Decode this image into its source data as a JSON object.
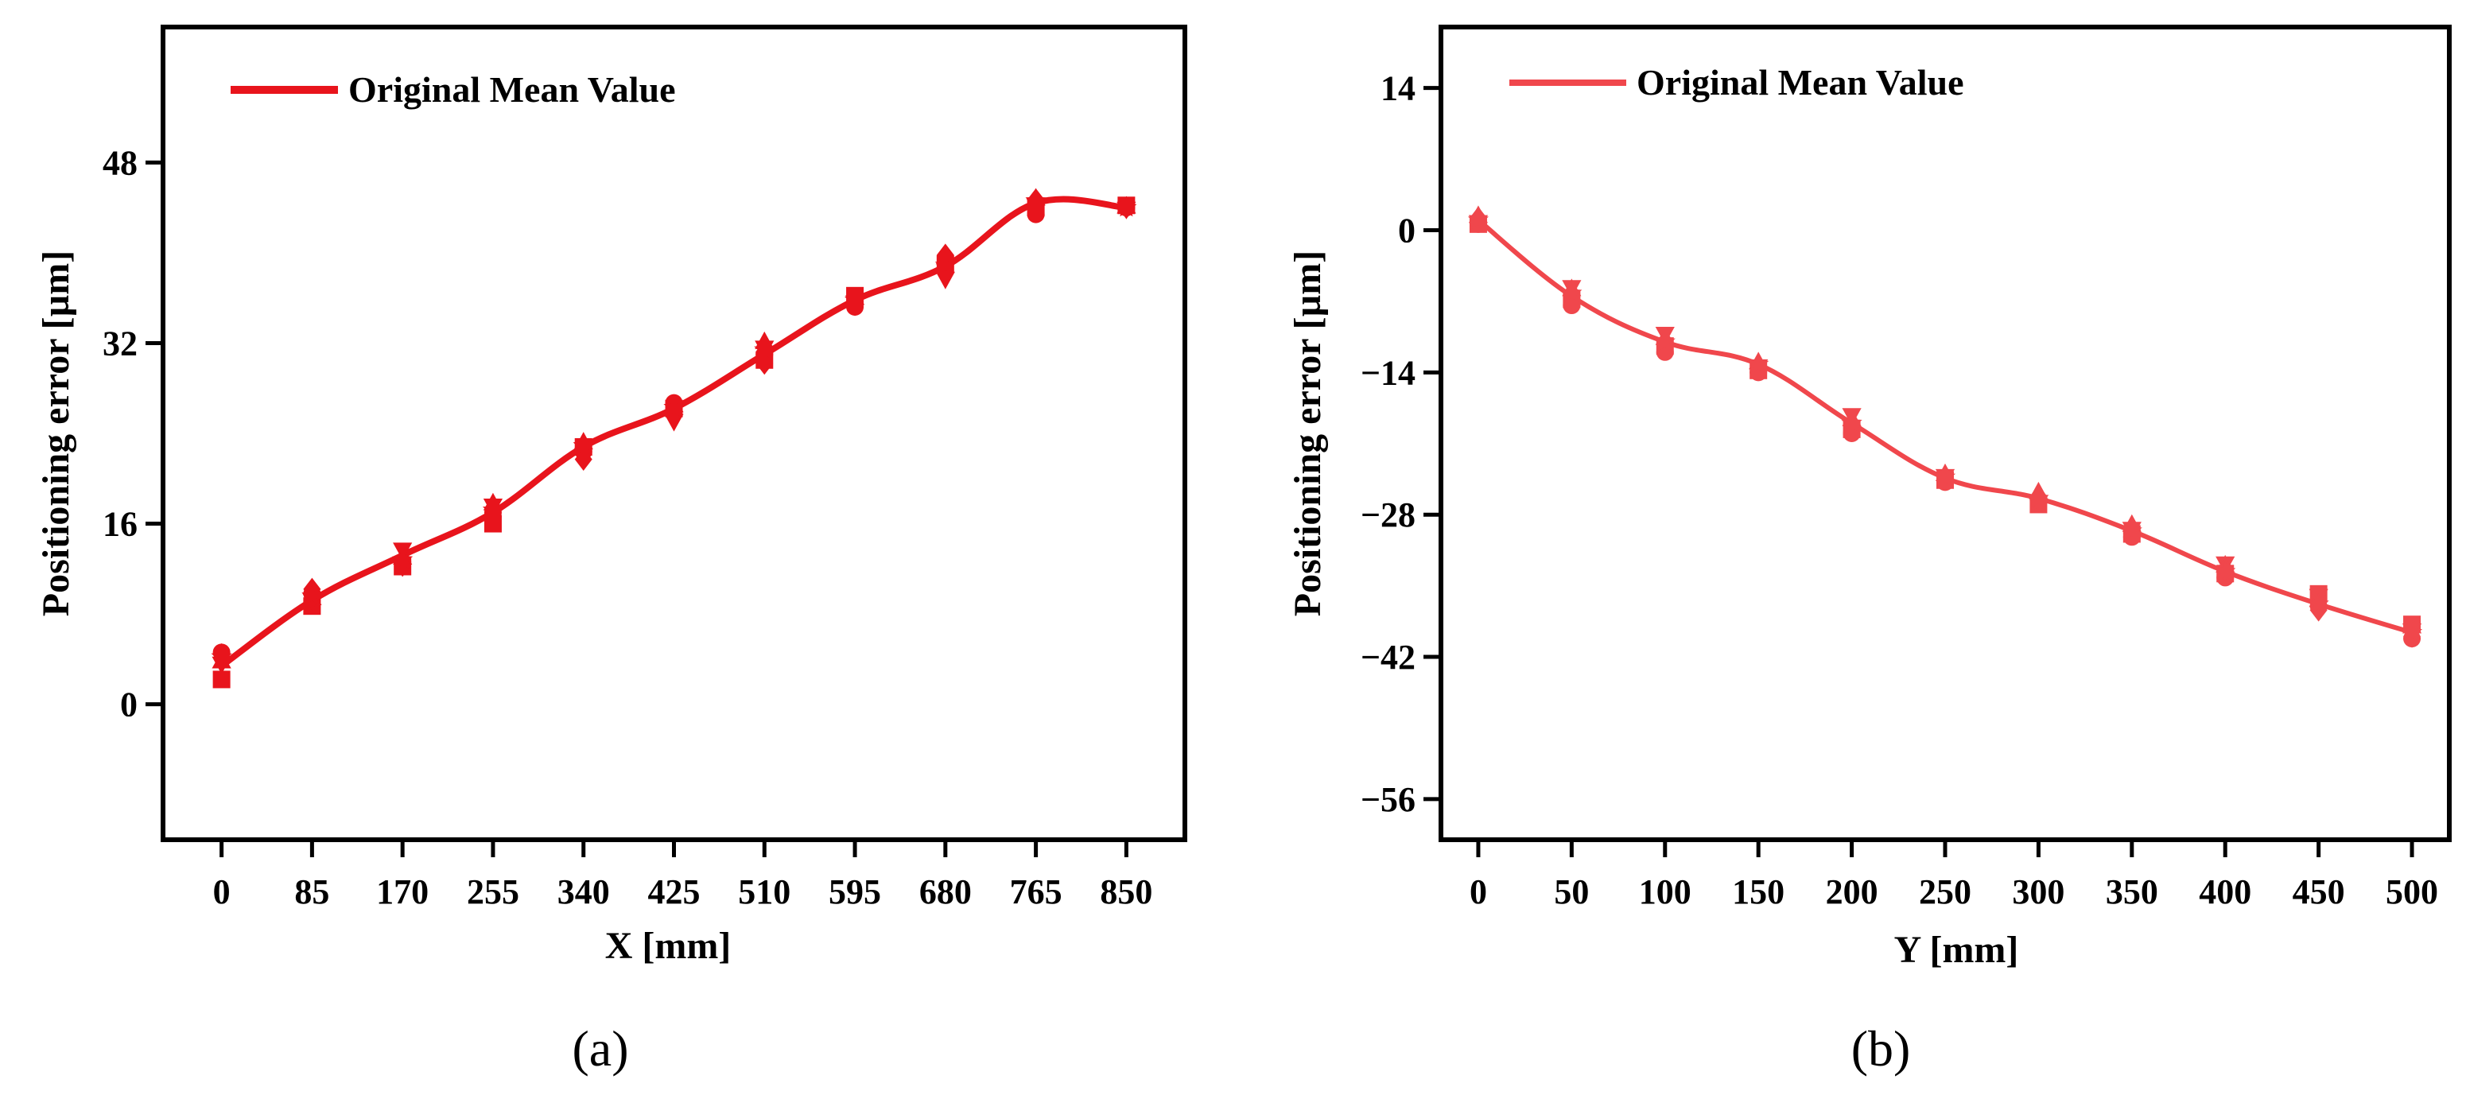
{
  "chart_data": [
    {
      "type": "line",
      "panel_label": "(a)",
      "xlabel": "X [mm]",
      "ylabel": "Positioning error [µm]",
      "legend": {
        "label": "Original Mean Value",
        "placement": "top-left"
      },
      "color": "#e8141c",
      "x": [
        0,
        85,
        170,
        255,
        340,
        425,
        510,
        595,
        680,
        765,
        850
      ],
      "x_tick_labels": [
        "0",
        "85",
        "170",
        "255",
        "340",
        "425",
        "510",
        "595",
        "680",
        "765",
        "850"
      ],
      "xlim": [
        -55,
        905
      ],
      "ylim": [
        -12,
        60
      ],
      "y_ticks": [
        0,
        16,
        32,
        48
      ],
      "y_tick_labels": [
        "0",
        "16",
        "32",
        "48"
      ],
      "series": [
        {
          "name": "Original Mean Value",
          "values": [
            3.4,
            9.2,
            13.2,
            17.0,
            22.8,
            26.2,
            31.0,
            35.8,
            38.8,
            44.4,
            44.0
          ]
        }
      ],
      "marker_groups": [
        {
          "marker": "square",
          "values": [
            2.2,
            8.7,
            12.2,
            16.0,
            22.8,
            26.2,
            30.5,
            36.2,
            39.0,
            44.0,
            44.2
          ]
        },
        {
          "marker": "circle",
          "values": [
            4.6,
            9.8,
            12.6,
            17.0,
            22.4,
            26.7,
            31.0,
            35.2,
            39.2,
            43.4,
            44.0
          ]
        },
        {
          "marker": "triangle-up",
          "values": [
            3.8,
            9.4,
            13.0,
            17.8,
            23.2,
            26.5,
            32.1,
            36.0,
            39.6,
            44.8,
            44.1
          ]
        },
        {
          "marker": "triangle-down",
          "values": [
            3.6,
            9.2,
            13.7,
            17.6,
            22.6,
            25.1,
            31.6,
            35.6,
            37.7,
            44.2,
            43.9
          ]
        },
        {
          "marker": "diamond",
          "values": [
            4.4,
            10.2,
            12.3,
            16.6,
            21.7,
            26.0,
            30.2,
            35.4,
            39.8,
            44.7,
            44.0
          ]
        },
        {
          "marker": "star",
          "values": [
            4.2,
            9.6,
            12.8,
            17.2,
            22.9,
            26.3,
            31.4,
            35.8,
            38.9,
            44.6,
            44.0
          ]
        }
      ]
    },
    {
      "type": "line",
      "panel_label": "(b)",
      "xlabel": "Y [mm]",
      "ylabel": "Positioning error [µm]",
      "legend": {
        "label": "Original Mean Value",
        "placement": "top-left"
      },
      "color": "#f0474c",
      "x": [
        0,
        50,
        100,
        150,
        200,
        250,
        300,
        350,
        400,
        450,
        500
      ],
      "x_tick_labels": [
        "0",
        "50",
        "100",
        "150",
        "200",
        "250",
        "300",
        "350",
        "400",
        "450",
        "500"
      ],
      "xlim": [
        -20,
        520
      ],
      "ylim": [
        -60,
        20
      ],
      "y_ticks": [
        -56,
        -42,
        -28,
        -14,
        0,
        14
      ],
      "y_tick_labels": [
        "−56",
        "−42",
        "−28",
        "−14",
        "0",
        "14"
      ],
      "series": [
        {
          "name": "Original Mean Value",
          "values": [
            1.0,
            -6.5,
            -11.0,
            -13.2,
            -19.0,
            -24.4,
            -26.4,
            -29.6,
            -33.6,
            -36.8,
            -39.6
          ]
        }
      ],
      "marker_groups": [
        {
          "marker": "square",
          "values": [
            0.6,
            -6.8,
            -11.4,
            -13.8,
            -19.6,
            -24.6,
            -27.0,
            -29.9,
            -33.8,
            -35.8,
            -38.8
          ]
        },
        {
          "marker": "circle",
          "values": [
            0.6,
            -7.4,
            -12.0,
            -14.0,
            -20.0,
            -24.8,
            -26.6,
            -30.2,
            -34.2,
            -37.0,
            -40.2
          ]
        },
        {
          "marker": "triangle-up",
          "values": [
            1.4,
            -5.8,
            -10.6,
            -13.0,
            -18.6,
            -24.0,
            -25.8,
            -29.0,
            -33.0,
            -36.4,
            -39.0
          ]
        },
        {
          "marker": "triangle-down",
          "values": [
            0.8,
            -5.6,
            -10.2,
            -13.4,
            -18.2,
            -24.2,
            -26.8,
            -29.4,
            -32.8,
            -36.0,
            -39.4
          ]
        },
        {
          "marker": "diamond",
          "values": [
            1.2,
            -6.6,
            -11.2,
            -13.6,
            -19.2,
            -24.4,
            -26.2,
            -29.8,
            -33.4,
            -37.4,
            -40.0
          ]
        },
        {
          "marker": "star",
          "values": [
            1.0,
            -6.2,
            -11.0,
            -13.2,
            -19.0,
            -24.3,
            -26.4,
            -29.6,
            -33.6,
            -36.8,
            -39.6
          ]
        }
      ]
    }
  ]
}
